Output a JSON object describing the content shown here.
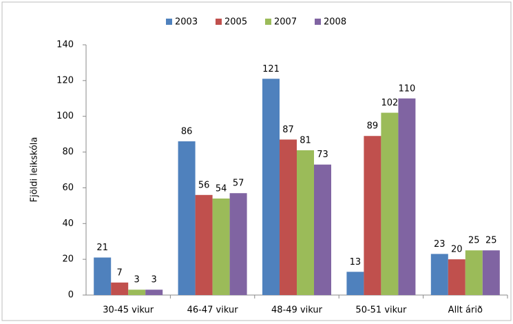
{
  "chart_data": {
    "type": "bar",
    "ylabel": "Fjöldi leikskóla",
    "categories": [
      "30-45 vikur",
      "46-47 vikur",
      "48-49 vikur",
      "50-51 vikur",
      "Allt árið"
    ],
    "series": [
      {
        "name": "2003",
        "color": "#4f81bd",
        "values": [
          21,
          86,
          121,
          13,
          23
        ]
      },
      {
        "name": "2005",
        "color": "#c0504d",
        "values": [
          7,
          56,
          87,
          89,
          20
        ]
      },
      {
        "name": "2007",
        "color": "#9bbb59",
        "values": [
          3,
          54,
          81,
          102,
          25
        ]
      },
      {
        "name": "2008",
        "color": "#8064a2",
        "values": [
          3,
          57,
          73,
          110,
          25
        ]
      }
    ],
    "ylim": [
      0,
      140
    ],
    "yticks": [
      0,
      20,
      40,
      60,
      80,
      100,
      120,
      140
    ],
    "legend": "top",
    "grid": false
  }
}
